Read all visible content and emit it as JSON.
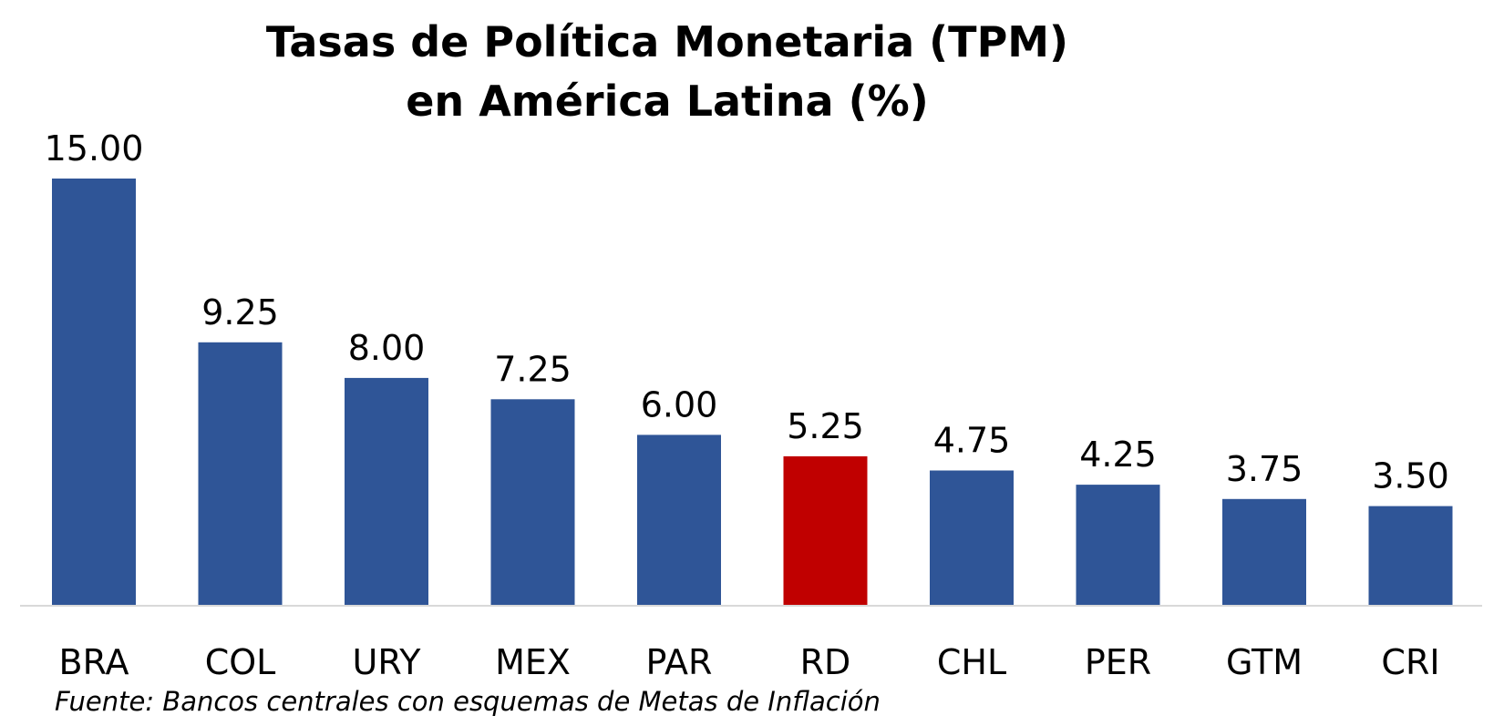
{
  "colors": {
    "bar_default": "#2F5597",
    "bar_highlight": "#C00000",
    "axis_line": "#D9D9D9",
    "text": "#000000"
  },
  "chart_data": {
    "type": "bar",
    "title": [
      "Tasas de Política Monetaria (TPM)",
      "en América Latina (%)"
    ],
    "xlabel": "",
    "ylabel": "",
    "ylim": [
      0,
      15
    ],
    "grid": false,
    "legend": "none",
    "highlight_category": "RD",
    "categories": [
      "BRA",
      "COL",
      "URY",
      "MEX",
      "PAR",
      "RD",
      "CHL",
      "PER",
      "GTM",
      "CRI"
    ],
    "values": [
      15.0,
      9.25,
      8.0,
      7.25,
      6.0,
      5.25,
      4.75,
      4.25,
      3.75,
      3.5
    ],
    "data_labels": [
      "15.00",
      "9.25",
      "8.00",
      "7.25",
      "6.00",
      "5.25",
      "4.75",
      "4.25",
      "3.75",
      "3.50"
    ]
  },
  "footer": {
    "source": "Fuente: Bancos centrales con esquemas de Metas de Inflación"
  }
}
